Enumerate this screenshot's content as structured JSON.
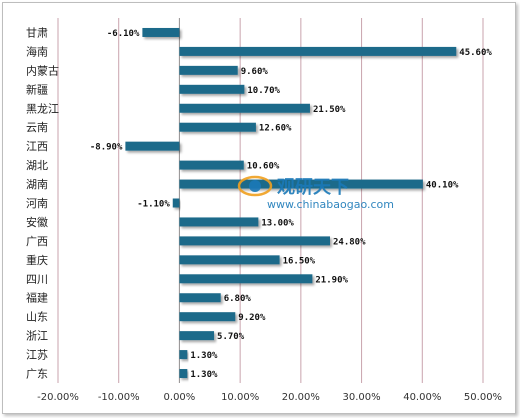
{
  "chart_data": {
    "type": "bar",
    "orientation": "horizontal",
    "categories": [
      "甘肃",
      "海南",
      "内蒙古",
      "新疆",
      "黑龙江",
      "云南",
      "江西",
      "湖北",
      "湖南",
      "河南",
      "安徽",
      "广西",
      "重庆",
      "四川",
      "福建",
      "山东",
      "浙江",
      "江苏",
      "广东"
    ],
    "values": [
      -6.1,
      45.6,
      9.6,
      10.7,
      21.5,
      12.6,
      -8.9,
      10.6,
      40.1,
      -1.1,
      13.0,
      24.8,
      16.5,
      21.9,
      6.8,
      9.2,
      5.7,
      1.3,
      1.3
    ],
    "value_labels": [
      "-6.10%",
      "45.60%",
      "9.60%",
      "10.70%",
      "21.50%",
      "12.60%",
      "-8.90%",
      "10.60%",
      "40.10%",
      "-1.10%",
      "13.00%",
      "24.80%",
      "16.50%",
      "21.90%",
      "6.80%",
      "9.20%",
      "5.70%",
      "1.30%",
      "1.30%"
    ],
    "xlim": [
      -20,
      50
    ],
    "x_ticks": [
      -20,
      -10,
      0,
      10,
      20,
      30,
      40,
      50
    ],
    "x_tick_labels": [
      "-20.00%",
      "-10.00%",
      "0.00%",
      "10.00%",
      "20.00%",
      "30.00%",
      "40.00%",
      "50.00%"
    ],
    "grid": "vertical",
    "bar_color": "#1f6a8a",
    "grid_color": "#c9a3ad"
  },
  "watermark": {
    "cn": "观研天下",
    "en": "www.chinabaogao.com",
    "color": "#1a79b8"
  }
}
